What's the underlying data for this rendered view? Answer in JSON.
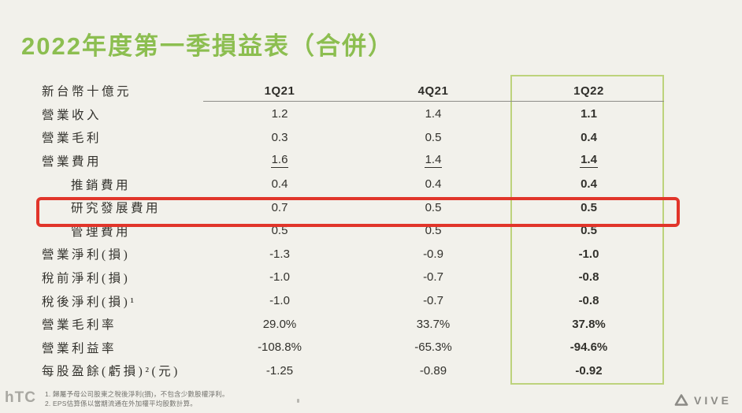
{
  "title": "2022年度第一季損益表（合併）",
  "table": {
    "unit_label": "新台幣十億元",
    "columns": [
      "1Q21",
      "4Q21",
      "1Q22"
    ],
    "rows": [
      {
        "label": "營業收入",
        "indent": false,
        "underline": false,
        "highlight": false,
        "values": [
          "1.2",
          "1.4",
          "1.1"
        ]
      },
      {
        "label": "營業毛利",
        "indent": false,
        "underline": false,
        "highlight": false,
        "values": [
          "0.3",
          "0.5",
          "0.4"
        ]
      },
      {
        "label": "營業費用",
        "indent": false,
        "underline": true,
        "highlight": false,
        "values": [
          "1.6",
          "1.4",
          "1.4"
        ]
      },
      {
        "label": "推銷費用",
        "indent": true,
        "underline": false,
        "highlight": false,
        "values": [
          "0.4",
          "0.4",
          "0.4"
        ]
      },
      {
        "label": "研究發展費用",
        "indent": true,
        "underline": false,
        "highlight": true,
        "values": [
          "0.7",
          "0.5",
          "0.5"
        ]
      },
      {
        "label": "管理費用",
        "indent": true,
        "underline": false,
        "highlight": false,
        "values": [
          "0.5",
          "0.5",
          "0.5"
        ]
      },
      {
        "label": "營業淨利(損)",
        "indent": false,
        "underline": false,
        "highlight": false,
        "values": [
          "-1.3",
          "-0.9",
          "-1.0"
        ]
      },
      {
        "label": "稅前淨利(損)",
        "indent": false,
        "underline": false,
        "highlight": false,
        "values": [
          "-1.0",
          "-0.7",
          "-0.8"
        ]
      },
      {
        "label": "稅後淨利(損)¹",
        "indent": false,
        "underline": false,
        "highlight": false,
        "values": [
          "-1.0",
          "-0.7",
          "-0.8"
        ]
      },
      {
        "label": "營業毛利率",
        "indent": false,
        "underline": false,
        "highlight": false,
        "values": [
          "29.0%",
          "33.7%",
          "37.8%"
        ]
      },
      {
        "label": "營業利益率",
        "indent": false,
        "underline": false,
        "highlight": false,
        "values": [
          "-108.8%",
          "-65.3%",
          "-94.6%"
        ]
      },
      {
        "label": "每股盈餘(虧損)²(元)",
        "indent": false,
        "underline": false,
        "highlight": false,
        "values": [
          "-1.25",
          "-0.89",
          "-0.92"
        ]
      }
    ]
  },
  "footnotes": [
    "1. 歸屬予母公司股東之稅後淨利(損)，不包含少數股權淨利。",
    "2. EPS估算係以當期流通在外加權平均股數計算。"
  ],
  "branding": {
    "htc": "hTC",
    "vive": "VIVE"
  },
  "colors": {
    "background": "#f2f1eb",
    "title_green": "#8cbe50",
    "column_highlight_border": "#bdd37c",
    "row_highlight_border": "#e1352a",
    "text": "#32312c",
    "rule_gray": "#8e8d88",
    "footnote_gray": "#73726d",
    "logo_gray": "#a8a7a1"
  }
}
